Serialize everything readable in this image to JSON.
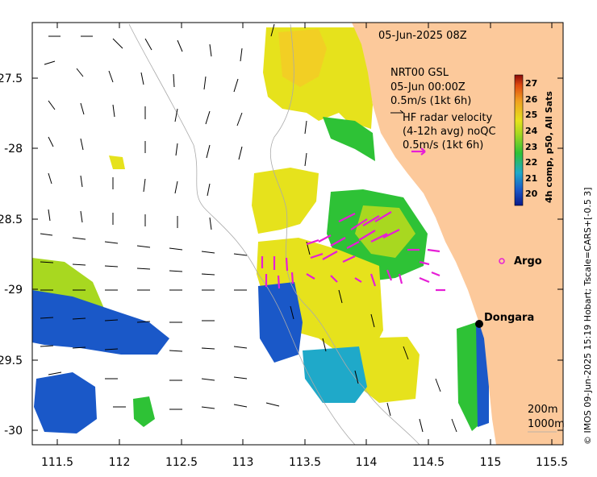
{
  "map": {
    "timestamp": "05-Jun-2025 08Z",
    "gsl_title": "NRT00 GSL",
    "gsl_time": "05-Jun 00:00Z",
    "gsl_scale": "0.5m/s (1kt 6h)",
    "hf_title": "HF radar velocity",
    "hf_sub": "(4-12h avg) noQC",
    "hf_scale": "0.5m/s (1kt 6h)",
    "contour_200": "200m",
    "contour_1000": "1000m",
    "credit": "© IMOS 09-Jun-2025 15:19 Hobart; Tscale=CARS+[-0.5 3]"
  },
  "places": [
    {
      "name": "Argo",
      "lon": 115.1,
      "lat": -28.76
    },
    {
      "name": "Dongara",
      "lon": 114.93,
      "lat": -29.26
    }
  ],
  "axes": {
    "x_ticks": [
      "111.5",
      "112",
      "112.5",
      "113",
      "113.5",
      "114",
      "114.5",
      "115",
      "115.5"
    ],
    "y_ticks": [
      "-27.5",
      "-28",
      "-28.5",
      "-29",
      "-29.5",
      "-30"
    ],
    "lon_range": [
      111.3,
      115.6
    ],
    "lat_range": [
      -30.1,
      -27.1
    ]
  },
  "colorbar": {
    "label": "4h comp, p50, All Sats",
    "ticks": [
      "20",
      "21",
      "22",
      "23",
      "24",
      "25",
      "26",
      "27"
    ],
    "range": [
      19.5,
      27.5
    ]
  },
  "colors": {
    "land": "#fcc99b",
    "sst_yellow": "#e6e21c",
    "sst_green": "#2ec236",
    "sst_blue": "#1a58c8",
    "sst_cyan": "#1fa9c9",
    "hf_vector": "#e61ed6",
    "gsl_vector": "#000000"
  }
}
